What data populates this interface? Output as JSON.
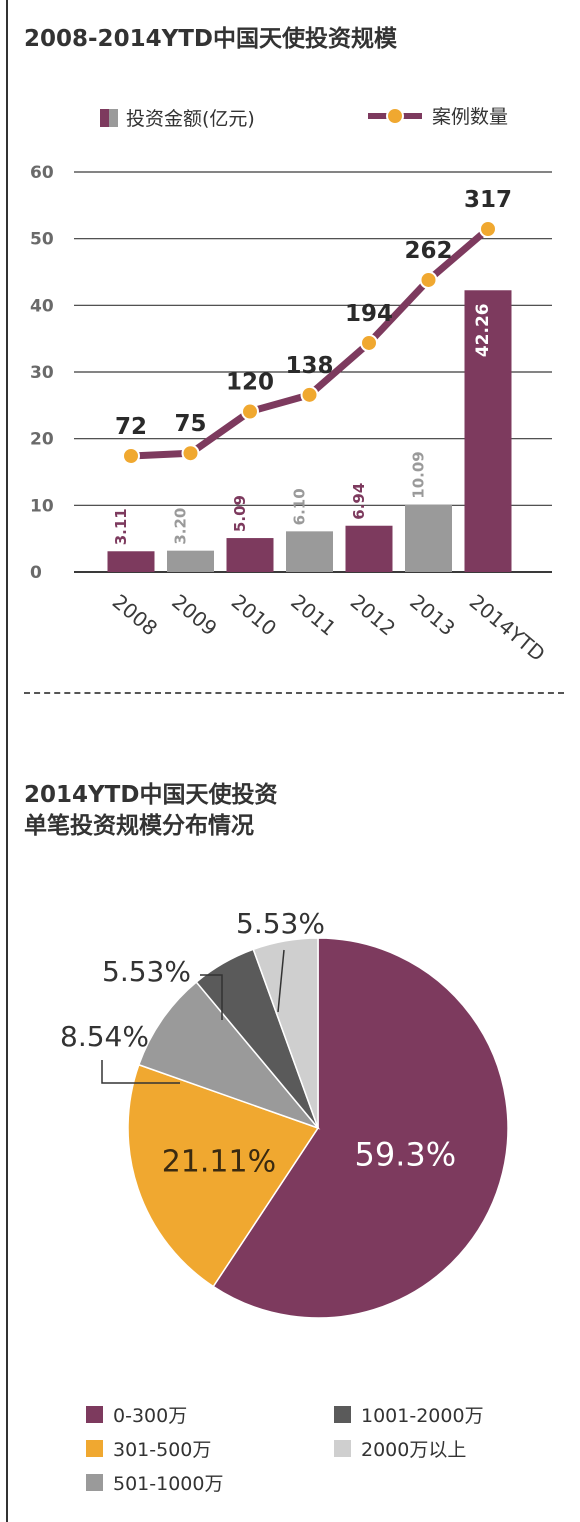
{
  "chart_data": [
    {
      "type": "bar+line",
      "title": "2008-2014YTD中国天使投资规模",
      "categories": [
        "2008",
        "2009",
        "2010",
        "2011",
        "2012",
        "2013",
        "2014YTD"
      ],
      "ylim": [
        0,
        60
      ],
      "yticks": [
        "0",
        "10",
        "20",
        "30",
        "40",
        "50",
        "60"
      ],
      "grid": true,
      "legend_placement": "top",
      "series": [
        {
          "name": "投资金额(亿元)",
          "kind": "bar",
          "values": [
            3.11,
            3.2,
            5.09,
            6.1,
            6.94,
            10.09,
            42.26
          ],
          "labels": [
            "3.11",
            "3.20",
            "5.09",
            "6.10",
            "6.94",
            "10.09",
            "42.26"
          ],
          "colors": [
            "#7d3a5e",
            "#9a9a9a",
            "#7d3a5e",
            "#9a9a9a",
            "#7d3a5e",
            "#9a9a9a",
            "#7d3a5e"
          ]
        },
        {
          "name": "案例数量",
          "kind": "line",
          "values": [
            72,
            75,
            120,
            138,
            194,
            262,
            317
          ],
          "labels": [
            "72",
            "75",
            "120",
            "138",
            "194",
            "262",
            "317"
          ],
          "line_color": "#7d3a5e",
          "marker_color": "#f0a830"
        }
      ]
    },
    {
      "type": "pie",
      "title": "2014YTD中国天使投资单笔投资规模分布情况",
      "title_lines": [
        "2014YTD中国天使投资",
        "单笔投资规模分布情况"
      ],
      "slices": [
        {
          "name": "0-300万",
          "value": 59.3,
          "label": "59.3%",
          "color": "#7d3a5e"
        },
        {
          "name": "301-500万",
          "value": 21.11,
          "label": "21.11%",
          "color": "#f0a830"
        },
        {
          "name": "501-1000万",
          "value": 8.54,
          "label": "8.54%",
          "color": "#9a9a9a"
        },
        {
          "name": "1001-2000万",
          "value": 5.53,
          "label": "5.53%",
          "color": "#5a5a5a"
        },
        {
          "name": "2000万以上",
          "value": 5.53,
          "label": "5.53%",
          "color": "#cfcfcf"
        }
      ],
      "legend_placement": "bottom"
    }
  ]
}
